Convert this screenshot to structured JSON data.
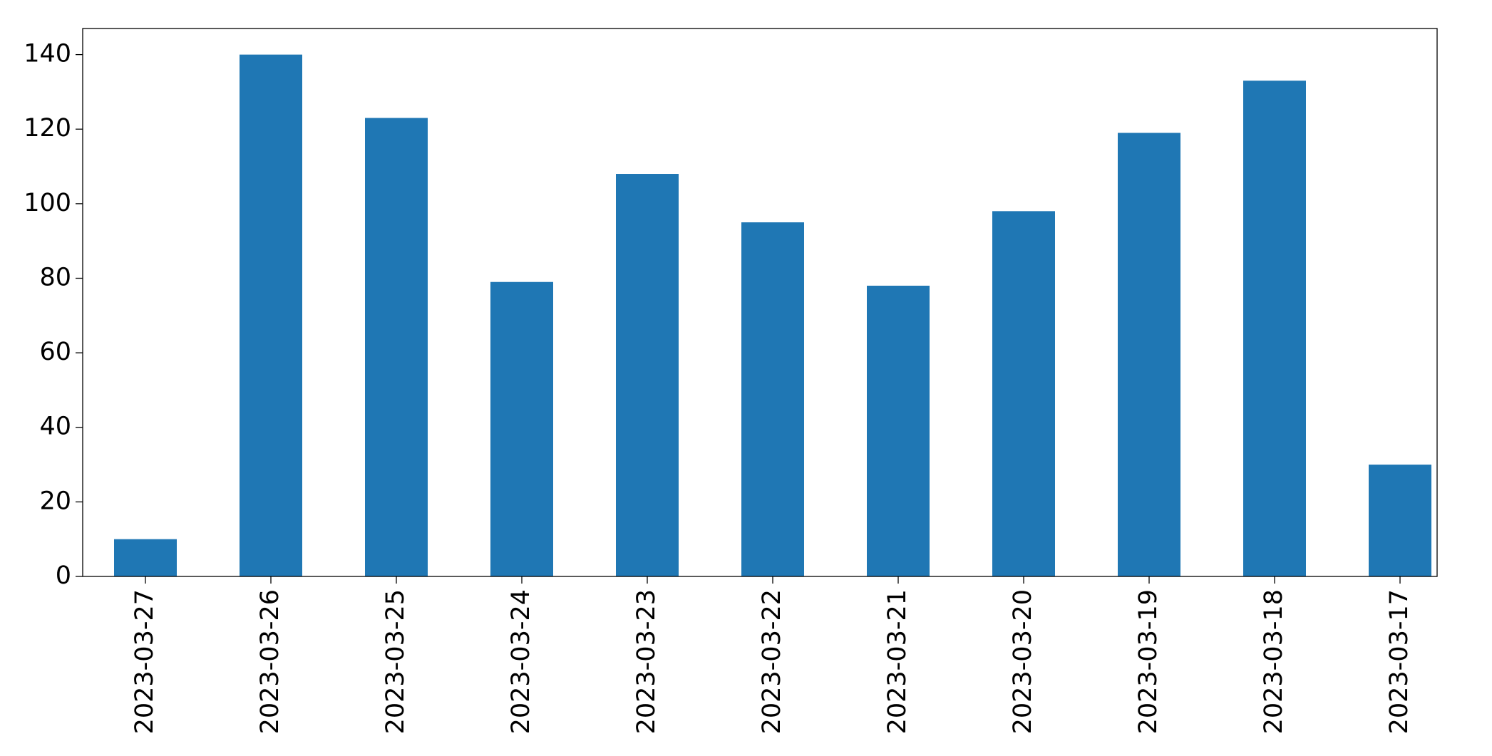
{
  "chart_data": {
    "type": "bar",
    "categories": [
      "2023-03-27",
      "2023-03-26",
      "2023-03-25",
      "2023-03-24",
      "2023-03-23",
      "2023-03-22",
      "2023-03-21",
      "2023-03-20",
      "2023-03-19",
      "2023-03-18",
      "2023-03-17"
    ],
    "values": [
      10,
      140,
      123,
      79,
      108,
      95,
      78,
      98,
      119,
      133,
      30
    ],
    "color": "#1f77b4",
    "ylim": [
      0,
      147
    ],
    "yticks": [
      0,
      20,
      40,
      60,
      80,
      100,
      120,
      140
    ],
    "grid": false
  }
}
